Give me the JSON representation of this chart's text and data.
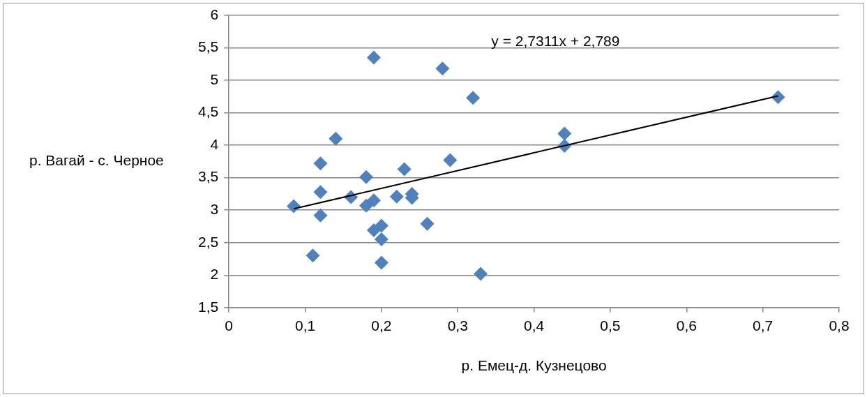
{
  "chart_data": {
    "type": "scatter",
    "xlabel": "р. Емец-д. Кузнецово",
    "ylabel": "р. Вагай - с. Черное",
    "xlim": [
      0,
      0.8
    ],
    "xticks": [
      {
        "value": 0,
        "label": "0"
      },
      {
        "value": 0.1,
        "label": "0,1"
      },
      {
        "value": 0.2,
        "label": "0,2"
      },
      {
        "value": 0.3,
        "label": "0,3"
      },
      {
        "value": 0.4,
        "label": "0,4"
      },
      {
        "value": 0.5,
        "label": "0,5"
      },
      {
        "value": 0.6,
        "label": "0,6"
      },
      {
        "value": 0.7,
        "label": "0,7"
      },
      {
        "value": 0.8,
        "label": "0,8"
      }
    ],
    "ylim": [
      1.5,
      6
    ],
    "yticks": [
      {
        "value": 1.5,
        "label": "1,5"
      },
      {
        "value": 2,
        "label": "2"
      },
      {
        "value": 2.5,
        "label": "2,5"
      },
      {
        "value": 3,
        "label": "3"
      },
      {
        "value": 3.5,
        "label": "3,5"
      },
      {
        "value": 4,
        "label": "4"
      },
      {
        "value": 4.5,
        "label": "4,5"
      },
      {
        "value": 5,
        "label": "5"
      },
      {
        "value": 5.5,
        "label": "5,5"
      },
      {
        "value": 6,
        "label": "6"
      }
    ],
    "grid": "y",
    "legend": false,
    "marker": "diamond",
    "annotations": [
      "y = 2,7311x + 2,789"
    ],
    "series": [
      {
        "color": "#4f81bd",
        "x": [
          0.085,
          0.11,
          0.12,
          0.12,
          0.12,
          0.14,
          0.16,
          0.18,
          0.18,
          0.19,
          0.19,
          0.19,
          0.2,
          0.2,
          0.2,
          0.22,
          0.23,
          0.24,
          0.24,
          0.26,
          0.28,
          0.29,
          0.32,
          0.33,
          0.44,
          0.44,
          0.72
        ],
        "values": [
          3.06,
          2.3,
          3.72,
          3.28,
          2.92,
          4.1,
          3.2,
          3.51,
          3.07,
          5.35,
          3.15,
          2.69,
          2.76,
          2.55,
          2.19,
          3.21,
          3.63,
          3.25,
          3.19,
          2.79,
          5.18,
          3.77,
          4.73,
          2.02,
          4.18,
          3.99,
          4.74
        ]
      },
      {
        "type": "line",
        "color": "#000000",
        "marker": "none",
        "x": [
          0.085,
          0.72
        ],
        "values": [
          3.02,
          4.76
        ]
      }
    ]
  }
}
